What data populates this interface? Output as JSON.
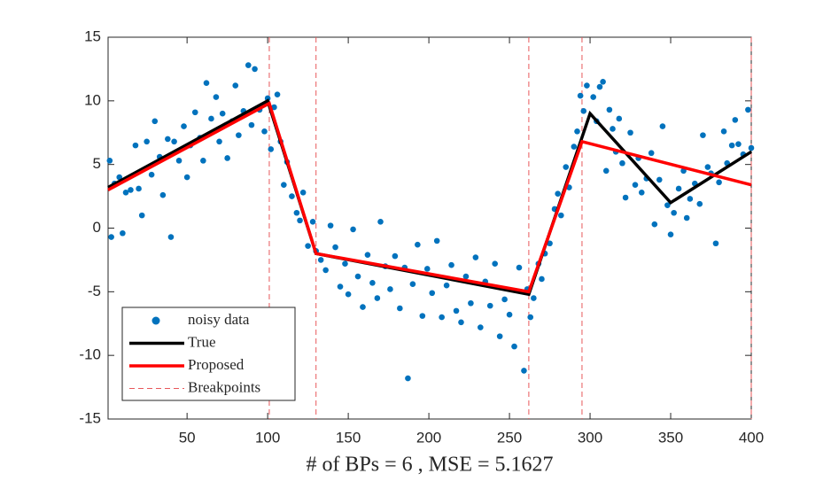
{
  "chart_data": {
    "type": "scatter",
    "xlabel": "# of BPs = 6 , MSE = 5.1627",
    "xlim": [
      1,
      400
    ],
    "ylim": [
      -15,
      15
    ],
    "xticks": [
      50,
      100,
      150,
      200,
      250,
      300,
      350,
      400
    ],
    "yticks": [
      -15,
      -10,
      -5,
      0,
      5,
      10,
      15
    ],
    "legend": "lower left",
    "series": [
      {
        "name": "noisy data",
        "mode": "markers",
        "color": "#0072bd",
        "x": [
          2,
          3,
          5,
          8,
          10,
          12,
          15,
          18,
          20,
          22,
          25,
          28,
          30,
          33,
          35,
          38,
          40,
          42,
          45,
          48,
          50,
          52,
          55,
          58,
          60,
          62,
          65,
          68,
          70,
          72,
          75,
          78,
          80,
          82,
          85,
          88,
          90,
          92,
          95,
          98,
          100,
          102,
          104,
          106,
          108,
          110,
          112,
          115,
          118,
          120,
          122,
          125,
          128,
          130,
          133,
          136,
          139,
          142,
          145,
          148,
          150,
          153,
          156,
          159,
          162,
          165,
          168,
          170,
          173,
          176,
          179,
          182,
          185,
          187,
          190,
          193,
          196,
          199,
          202,
          205,
          208,
          211,
          214,
          217,
          220,
          223,
          226,
          229,
          232,
          235,
          238,
          241,
          244,
          247,
          250,
          253,
          256,
          259,
          261,
          263,
          265,
          268,
          270,
          272,
          275,
          278,
          280,
          282,
          285,
          287,
          290,
          292,
          294,
          296,
          298,
          302,
          304,
          306,
          308,
          310,
          312,
          314,
          316,
          318,
          320,
          322,
          325,
          328,
          330,
          332,
          335,
          338,
          340,
          343,
          345,
          348,
          350,
          352,
          355,
          358,
          360,
          362,
          365,
          368,
          370,
          373,
          375,
          378,
          380,
          383,
          385,
          388,
          390,
          392,
          395,
          398,
          400
        ],
        "values": [
          5.3,
          -0.7,
          3.5,
          4,
          -0.4,
          2.8,
          3,
          6.5,
          3.1,
          1,
          6.8,
          4.2,
          8.4,
          5.6,
          2.6,
          7,
          -0.7,
          6.8,
          5.3,
          8,
          4,
          6.5,
          9.1,
          7.1,
          5.3,
          11.4,
          8.6,
          10.3,
          6.8,
          9,
          5.5,
          8.4,
          11.2,
          7.3,
          9.2,
          12.8,
          8.1,
          12.5,
          9.3,
          7.6,
          10.2,
          6.2,
          9.5,
          10.5,
          6.8,
          3.4,
          5.2,
          2.5,
          1.2,
          0.6,
          2.8,
          -1.4,
          0.5,
          -1.8,
          -2.5,
          -3.3,
          0.2,
          -1.5,
          -4.6,
          -2.8,
          -5.2,
          -0.1,
          -3.8,
          -6.2,
          -2.1,
          -4.3,
          -5.5,
          0.5,
          -3,
          -4.8,
          -2.2,
          -6.3,
          -3.1,
          -11.8,
          -4.4,
          -1.3,
          -6.9,
          -3.2,
          -5.1,
          -1,
          -7,
          -4.5,
          -2.9,
          -6.5,
          -7.4,
          -3.8,
          -5.9,
          -2.3,
          -7.8,
          -4.2,
          -6.1,
          -2.8,
          -8.5,
          -5.6,
          -6.8,
          -9.3,
          -3.1,
          -11.2,
          -4.8,
          -7,
          -5.5,
          -2.8,
          -4,
          -2,
          -1.2,
          1.5,
          2.7,
          1,
          4.8,
          3.2,
          6.4,
          7.6,
          10.4,
          9.2,
          11.2,
          10.3,
          8.4,
          11.1,
          11.5,
          4.5,
          9.3,
          7.8,
          6,
          8.6,
          5.1,
          2.4,
          7.5,
          3.4,
          5.5,
          2.8,
          3.9,
          5.9,
          0.3,
          3.8,
          8,
          1.8,
          -0.5,
          1.2,
          3.1,
          4.5,
          0.8,
          2.3,
          3.5,
          1.9,
          7.3,
          4.8,
          4.3,
          -1.2,
          3.6,
          7.6,
          5.1,
          6.5,
          8.5,
          6.6,
          5.8,
          9.3,
          6.3
        ]
      },
      {
        "name": "True",
        "mode": "line",
        "color": "#000000",
        "x": [
          1,
          100,
          130,
          262,
          300,
          350,
          400
        ],
        "values": [
          3.2,
          10,
          -2,
          -5.2,
          9,
          2,
          6
        ]
      },
      {
        "name": "Proposed",
        "mode": "line",
        "color": "#ff0000",
        "x": [
          1,
          101,
          130,
          262,
          295,
          400
        ],
        "values": [
          3,
          9.8,
          -2,
          -5,
          6.8,
          3.4
        ]
      },
      {
        "name": "Breakpoints",
        "mode": "vlines",
        "color": "#e8575a",
        "x": [
          101,
          130,
          262,
          295,
          400
        ]
      }
    ]
  }
}
